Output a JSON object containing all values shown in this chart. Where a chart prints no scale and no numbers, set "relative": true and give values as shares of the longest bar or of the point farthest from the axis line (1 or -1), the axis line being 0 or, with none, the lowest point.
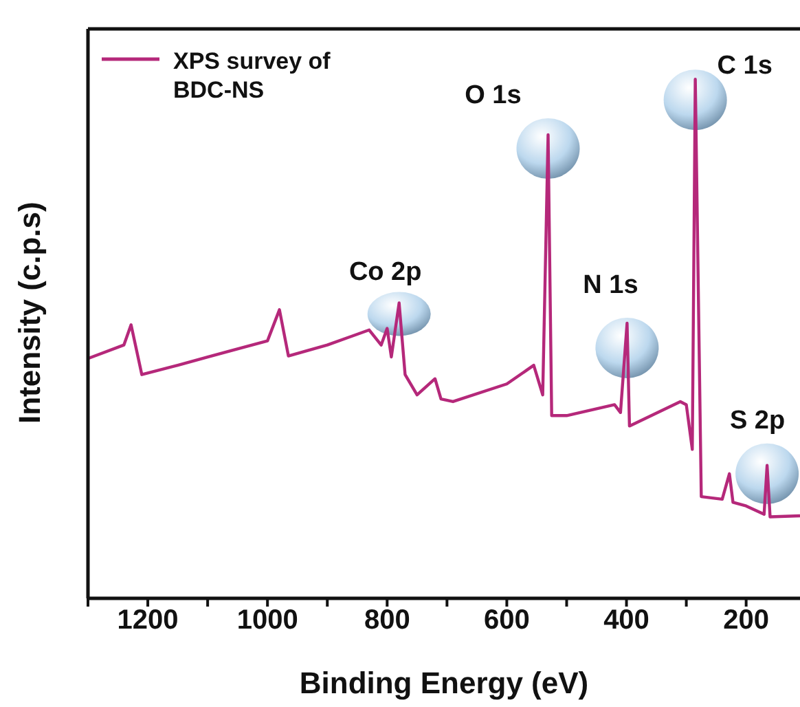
{
  "chart_data": {
    "type": "line",
    "relative": true,
    "xlabel": "Binding Energy (eV)",
    "ylabel": "Intensity (c.p.s)",
    "legend": "top left",
    "marker": "none",
    "xlim": [
      1300,
      110
    ],
    "xticks": [
      {
        "value": 1300,
        "label": null
      },
      1200,
      {
        "value": 1100,
        "label": null
      },
      1000,
      {
        "value": 900,
        "label": null
      },
      800,
      {
        "value": 700,
        "label": null
      },
      600,
      {
        "value": 500,
        "label": null
      },
      400,
      {
        "value": 300,
        "label": null
      },
      200
    ],
    "series": [
      {
        "name": "XPS survey of BDC-NS",
        "color": "#b5287a",
        "x": [
          1300,
          1240,
          1228,
          1210,
          1150,
          1100,
          1000,
          980,
          965,
          900,
          830,
          810,
          800,
          793,
          780,
          770,
          750,
          720,
          710,
          690,
          600,
          555,
          540,
          531,
          525,
          500,
          420,
          410,
          399,
          395,
          310,
          300,
          290,
          285,
          275,
          240,
          228,
          222,
          200,
          170,
          165,
          160,
          110
        ],
        "values": [
          0.462,
          0.488,
          0.527,
          0.431,
          0.449,
          0.465,
          0.496,
          0.556,
          0.467,
          0.488,
          0.517,
          0.488,
          0.52,
          0.465,
          0.569,
          0.431,
          0.392,
          0.423,
          0.384,
          0.379,
          0.413,
          0.449,
          0.392,
          0.893,
          0.352,
          0.352,
          0.373,
          0.358,
          0.53,
          0.332,
          0.379,
          0.373,
          0.287,
          1,
          0.196,
          0.191,
          0.24,
          0.185,
          0.178,
          0.162,
          0.256,
          0.157,
          0.159
        ]
      }
    ],
    "annotations": [
      {
        "text": "Co 2p",
        "x": 780,
        "y": 0.569
      },
      {
        "text": "O 1s",
        "x": 531,
        "y": 0.893
      },
      {
        "text": "N 1s",
        "x": 399,
        "y": 0.53
      },
      {
        "text": "C 1s",
        "x": 285,
        "y": 1
      },
      {
        "text": "S 2p",
        "x": 165,
        "y": 0.256
      }
    ]
  }
}
